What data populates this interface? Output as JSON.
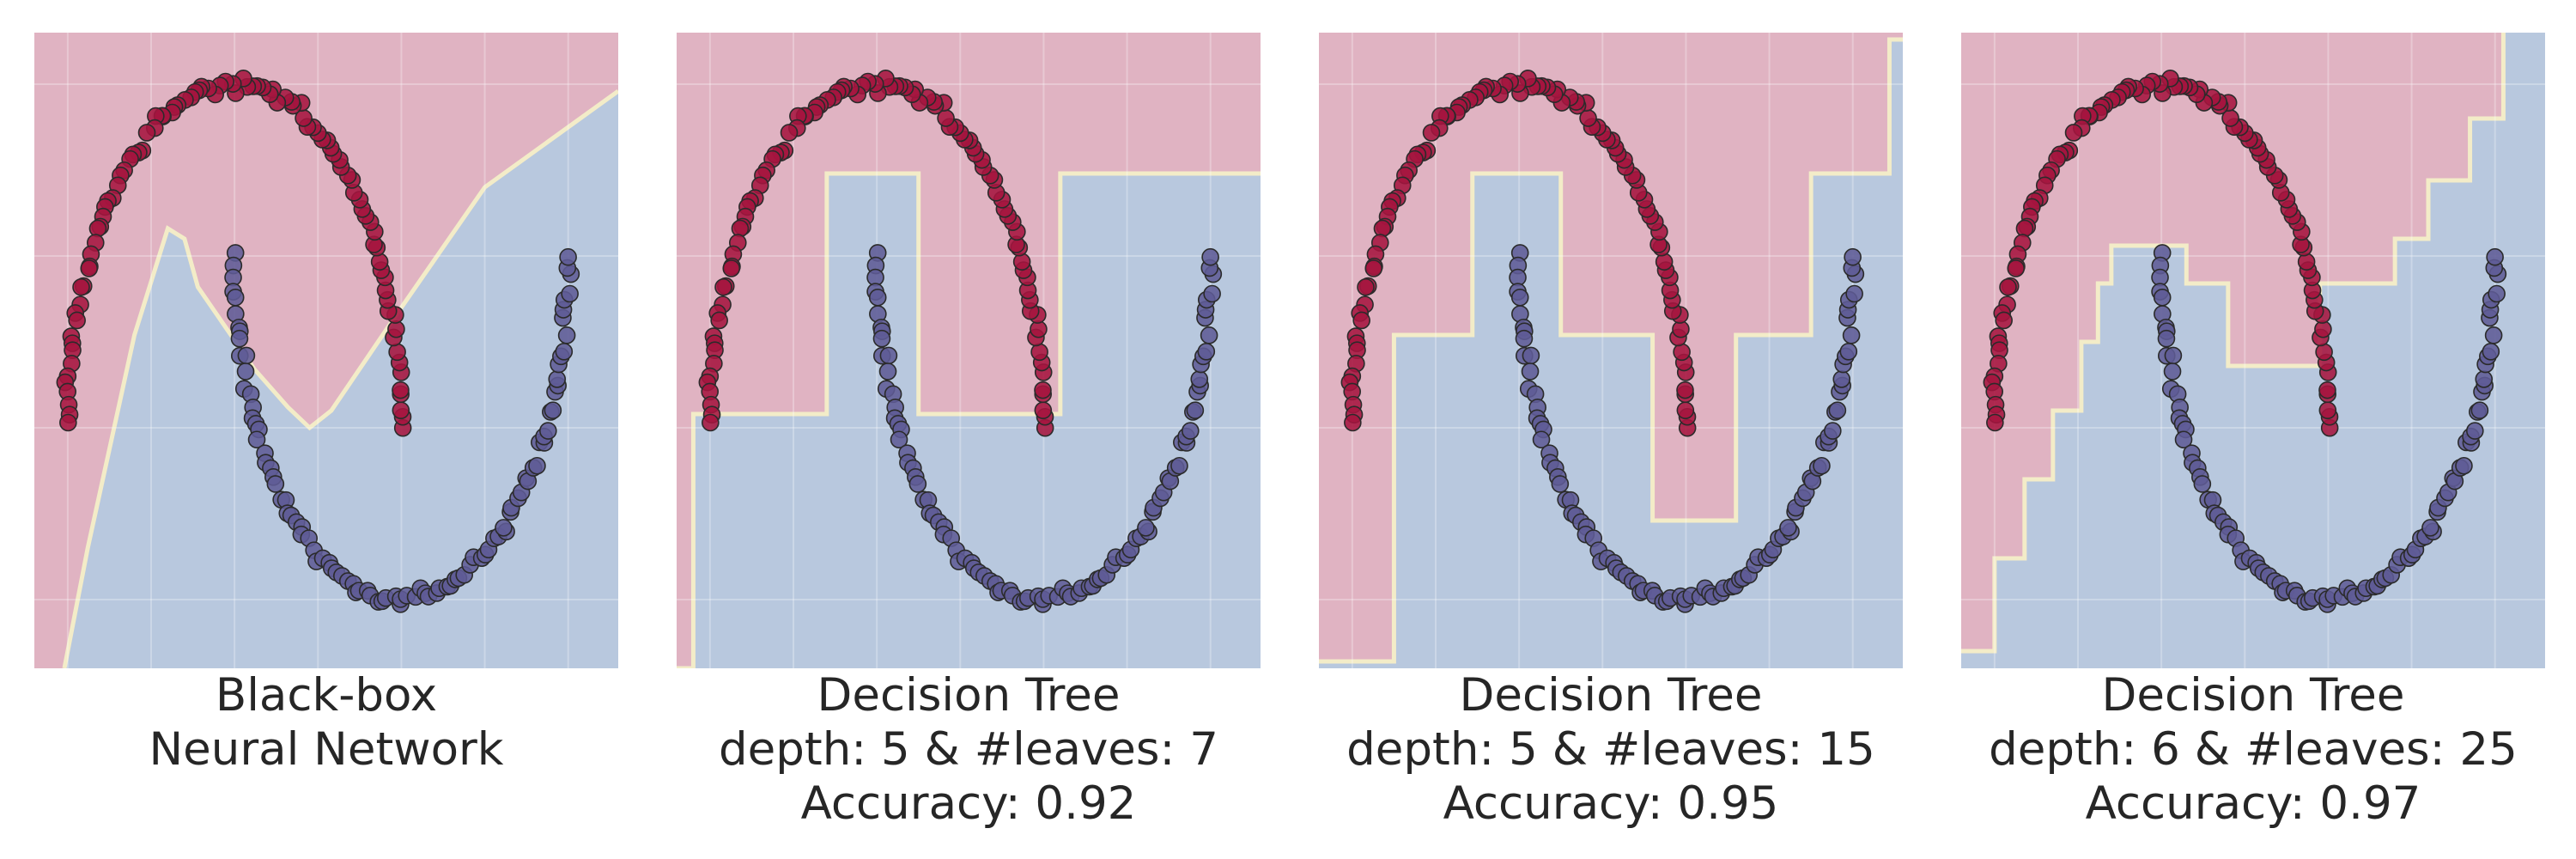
{
  "colors": {
    "class_0_region": "#e0b3c2",
    "class_1_region": "#b8c8de",
    "boundary": "#f3ecc8",
    "class_0_point": "#a5153f",
    "class_1_point": "#5f5b96",
    "point_edge": "#2b2b2b",
    "grid": "#ffffff"
  },
  "chart_data": [
    {
      "type": "scatter",
      "title_lines": [
        "Black-box",
        "Neural Network"
      ],
      "xlim": [
        -1.2,
        2.3
      ],
      "ylim": [
        -0.7,
        1.15
      ],
      "dataset": "two-moons",
      "boundary_kind": "polyline",
      "boundary": [
        [
          -1.02,
          -0.7
        ],
        [
          -0.88,
          -0.35
        ],
        [
          -0.6,
          0.27
        ],
        [
          -0.4,
          0.58
        ],
        [
          -0.3,
          0.55
        ],
        [
          -0.22,
          0.41
        ],
        [
          0.12,
          0.17
        ],
        [
          0.32,
          0.06
        ],
        [
          0.45,
          0.0
        ],
        [
          0.58,
          0.05
        ],
        [
          1.0,
          0.35
        ],
        [
          1.5,
          0.7
        ],
        [
          2.3,
          0.98
        ]
      ]
    },
    {
      "type": "scatter",
      "title_lines": [
        "Decision Tree",
        "depth: 5 & #leaves: 7",
        "Accuracy: 0.92"
      ],
      "xlim": [
        -1.2,
        2.3
      ],
      "ylim": [
        -0.7,
        1.15
      ],
      "dataset": "two-moons",
      "boundary_kind": "step",
      "boundary": [
        [
          -1.2,
          -0.7
        ],
        [
          -1.1,
          -0.7
        ],
        [
          -1.1,
          0.04
        ],
        [
          -0.3,
          0.04
        ],
        [
          -0.3,
          0.74
        ],
        [
          0.25,
          0.74
        ],
        [
          0.25,
          0.04
        ],
        [
          1.1,
          0.04
        ],
        [
          1.1,
          0.74
        ],
        [
          2.3,
          0.74
        ]
      ]
    },
    {
      "type": "scatter",
      "title_lines": [
        "Decision Tree",
        "depth: 5 & #leaves: 15",
        "Accuracy: 0.95"
      ],
      "xlim": [
        -1.2,
        2.3
      ],
      "ylim": [
        -0.7,
        1.15
      ],
      "dataset": "two-moons",
      "boundary_kind": "step",
      "boundary": [
        [
          -1.2,
          -0.68
        ],
        [
          -0.75,
          -0.68
        ],
        [
          -0.75,
          0.27
        ],
        [
          -0.28,
          0.27
        ],
        [
          -0.28,
          0.74
        ],
        [
          0.25,
          0.74
        ],
        [
          0.25,
          0.27
        ],
        [
          0.8,
          0.27
        ],
        [
          0.8,
          -0.27
        ],
        [
          1.3,
          -0.27
        ],
        [
          1.3,
          0.27
        ],
        [
          1.75,
          0.27
        ],
        [
          1.75,
          0.74
        ],
        [
          2.22,
          0.74
        ],
        [
          2.22,
          1.13
        ],
        [
          2.3,
          1.13
        ]
      ]
    },
    {
      "type": "scatter",
      "title_lines": [
        "Decision Tree",
        "depth: 6 & #leaves: 25",
        "Accuracy: 0.97"
      ],
      "xlim": [
        -1.2,
        2.3
      ],
      "ylim": [
        -0.7,
        1.15
      ],
      "dataset": "two-moons",
      "boundary_kind": "step",
      "boundary": [
        [
          -1.2,
          -0.65
        ],
        [
          -1.0,
          -0.65
        ],
        [
          -1.0,
          -0.38
        ],
        [
          -0.82,
          -0.38
        ],
        [
          -0.82,
          -0.15
        ],
        [
          -0.65,
          -0.15
        ],
        [
          -0.65,
          0.05
        ],
        [
          -0.48,
          0.05
        ],
        [
          -0.48,
          0.25
        ],
        [
          -0.38,
          0.25
        ],
        [
          -0.38,
          0.42
        ],
        [
          -0.3,
          0.42
        ],
        [
          -0.3,
          0.53
        ],
        [
          0.15,
          0.53
        ],
        [
          0.15,
          0.42
        ],
        [
          0.4,
          0.42
        ],
        [
          0.4,
          0.18
        ],
        [
          0.95,
          0.18
        ],
        [
          0.95,
          0.42
        ],
        [
          1.4,
          0.42
        ],
        [
          1.4,
          0.55
        ],
        [
          1.6,
          0.55
        ],
        [
          1.6,
          0.72
        ],
        [
          1.85,
          0.72
        ],
        [
          1.85,
          0.9
        ],
        [
          2.05,
          0.9
        ],
        [
          2.05,
          1.15
        ]
      ]
    }
  ]
}
